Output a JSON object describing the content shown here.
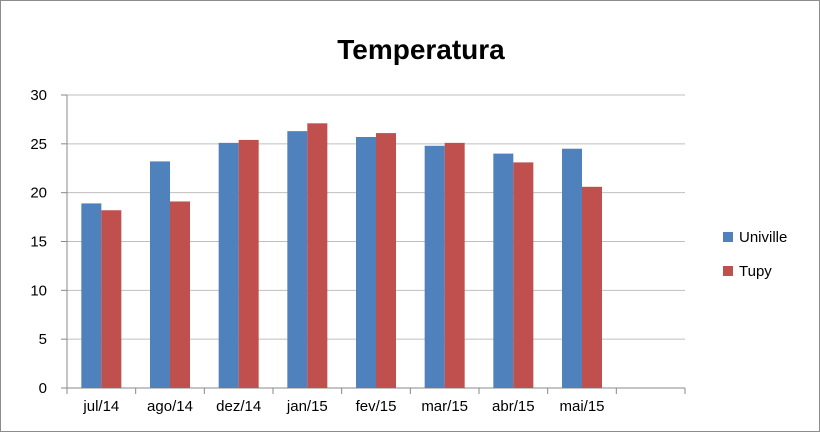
{
  "chart_data": {
    "type": "bar",
    "title": "Temperatura",
    "categories": [
      "jul/14",
      "ago/14",
      "dez/14",
      "jan/15",
      "fev/15",
      "mar/15",
      "abr/15",
      "mai/15",
      ""
    ],
    "series": [
      {
        "name": "Univille",
        "color": "#4f81bd",
        "values": [
          18.9,
          23.2,
          25.1,
          26.3,
          25.7,
          24.8,
          24.0,
          24.5,
          null
        ]
      },
      {
        "name": "Tupy",
        "color": "#c0504d",
        "values": [
          18.2,
          19.1,
          25.4,
          27.1,
          26.1,
          25.1,
          23.1,
          20.6,
          null
        ]
      }
    ],
    "ylim": [
      0,
      30
    ],
    "yticks": [
      0,
      5,
      10,
      15,
      20,
      25,
      30
    ],
    "xlabel": "",
    "ylabel": "",
    "grid": true,
    "legend_position": "right"
  }
}
